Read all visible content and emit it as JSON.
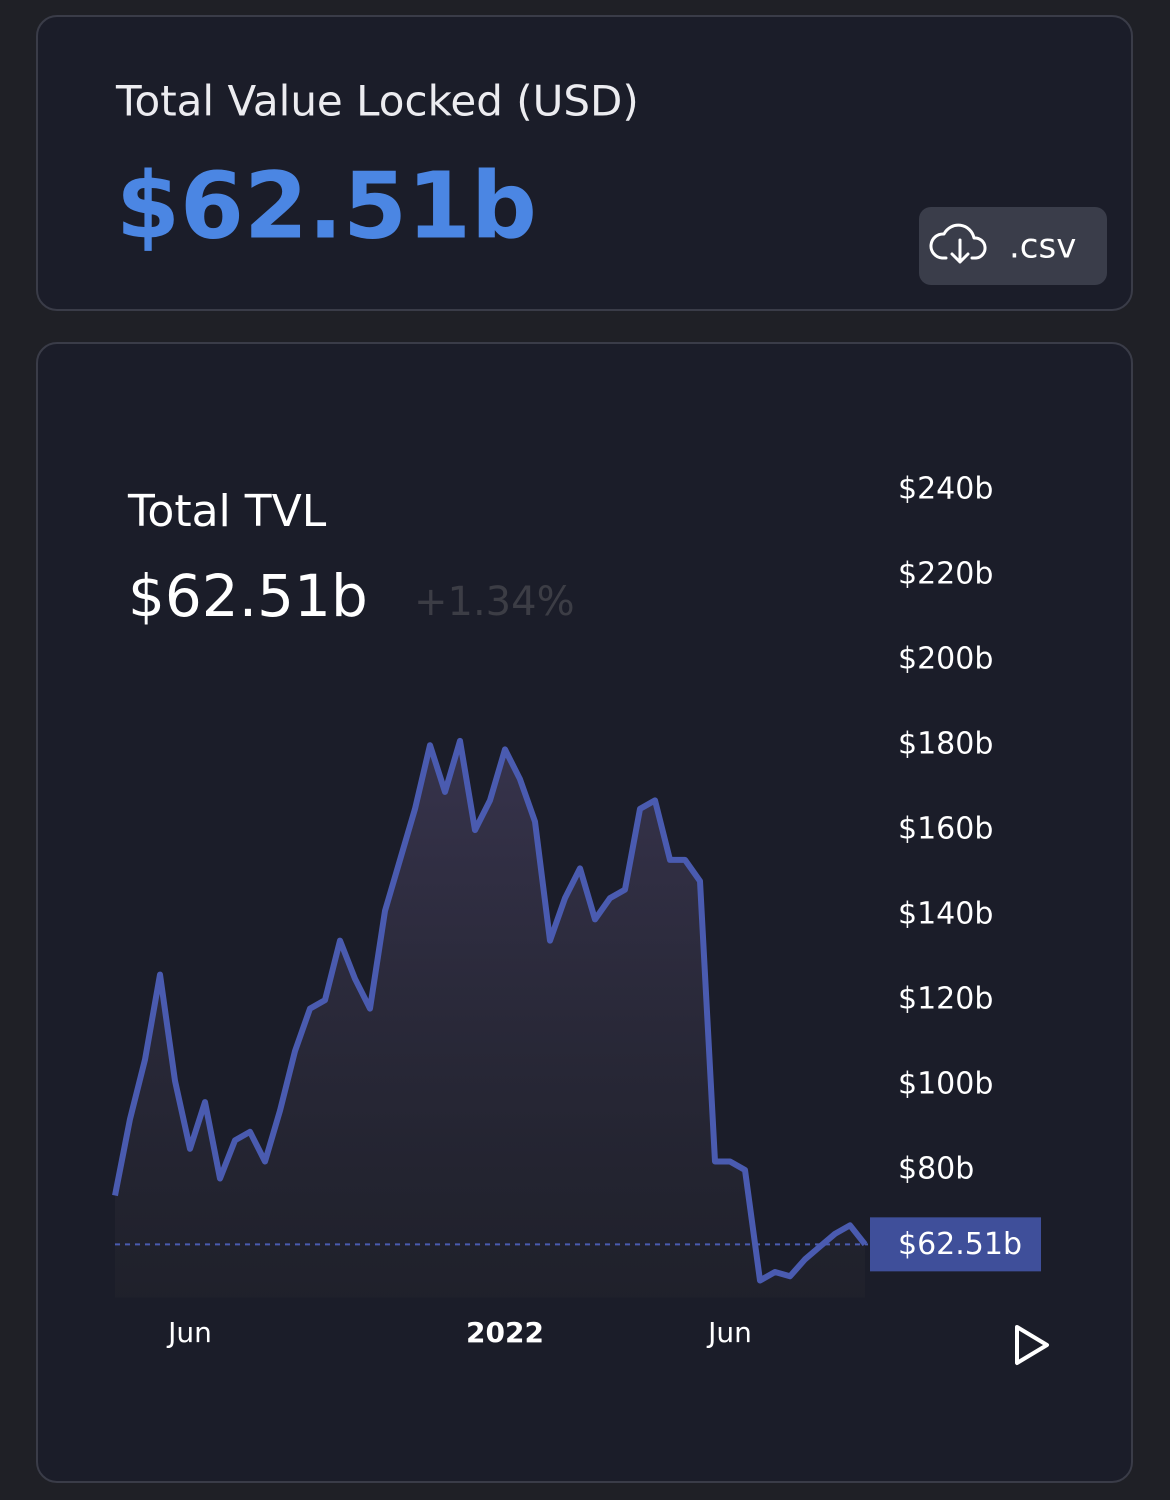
{
  "header": {
    "title": "Total Value Locked (USD)",
    "value": "$62.51b",
    "button": ".csv"
  },
  "chart_data": {
    "type": "area",
    "title": "Total TVL",
    "subtitle": "$62.51b",
    "change": "+1.34%",
    "x": [
      null,
      null,
      null,
      null,
      null,
      "Jun",
      null,
      null,
      null,
      null,
      null,
      null,
      null,
      null,
      null,
      null,
      null,
      null,
      null,
      null,
      null,
      null,
      null,
      null,
      null,
      null,
      "2022",
      null,
      null,
      null,
      null,
      null,
      null,
      null,
      null,
      null,
      null,
      null,
      null,
      null,
      null,
      "Jun",
      null,
      null,
      null,
      null,
      null,
      null,
      null,
      null,
      null
    ],
    "values": [
      74,
      92,
      106,
      126,
      101,
      85,
      96,
      78,
      87,
      89,
      82,
      94,
      108,
      118,
      120,
      134,
      125,
      118,
      141,
      153,
      165,
      180,
      169,
      181,
      160,
      167,
      179,
      172,
      162,
      134,
      144,
      151,
      139,
      144,
      146,
      165,
      167,
      153,
      153,
      148,
      82,
      82,
      80,
      54,
      56,
      55,
      59,
      62,
      65,
      67,
      62.51
    ],
    "color": "#4a5bb0",
    "ylim": [
      50,
      245
    ],
    "yticks": [
      {
        "value": 80,
        "label": "$80b"
      },
      {
        "value": 100,
        "label": "$100b"
      },
      {
        "value": 120,
        "label": "$120b"
      },
      {
        "value": 140,
        "label": "$140b"
      },
      {
        "value": 160,
        "label": "$160b"
      },
      {
        "value": 180,
        "label": "$180b"
      },
      {
        "value": 200,
        "label": "$200b"
      },
      {
        "value": 220,
        "label": "$220b"
      },
      {
        "value": 240,
        "label": "$240b"
      }
    ],
    "current": {
      "value": 62.51,
      "label": "$62.51b"
    }
  }
}
